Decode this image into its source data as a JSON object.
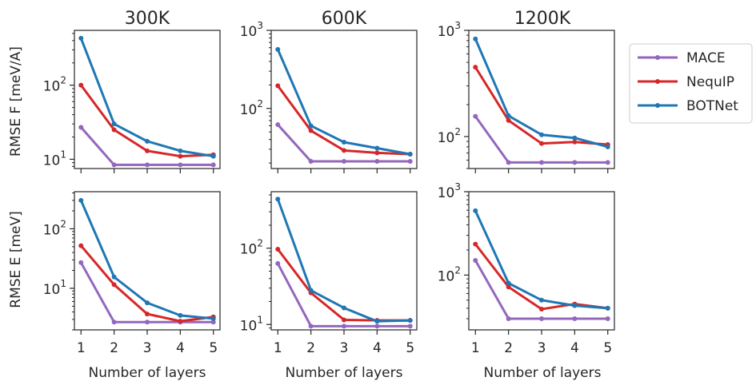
{
  "legend": [
    {
      "name": "MACE",
      "color": "#9467bd"
    },
    {
      "name": "NequIP",
      "color": "#d62728"
    },
    {
      "name": "BOTNet",
      "color": "#1f77b4"
    }
  ],
  "x_ticks": [
    "1",
    "2",
    "3",
    "4",
    "5"
  ],
  "labels": {
    "col_titles": [
      "300K",
      "600K",
      "1200K"
    ],
    "row_ylabels": [
      "RMSE F [meV/A]",
      "RMSE E [meV]"
    ],
    "xlabel": "Number of layers"
  },
  "chart_data": [
    {
      "type": "line",
      "title": "300K",
      "xlabel": "",
      "ylabel": "RMSE F [meV/A]",
      "yscale": "log",
      "ylim": [
        7.5,
        550
      ],
      "yticks": [
        {
          "value": 10,
          "base": "10",
          "exp": "1"
        },
        {
          "value": 100,
          "base": "10",
          "exp": "2"
        }
      ],
      "x": [
        1,
        2,
        3,
        4,
        5
      ],
      "series": [
        {
          "name": "MACE",
          "values": [
            27,
            8.4,
            8.4,
            8.4,
            8.4
          ]
        },
        {
          "name": "NequIP",
          "values": [
            100,
            25,
            13,
            11,
            11.5
          ]
        },
        {
          "name": "BOTNet",
          "values": [
            430,
            30,
            17.5,
            13,
            11
          ]
        }
      ]
    },
    {
      "type": "line",
      "title": "600K",
      "xlabel": "",
      "ylabel": "",
      "yscale": "log",
      "ylim": [
        17,
        1000
      ],
      "yticks": [
        {
          "value": 100,
          "base": "10",
          "exp": "2"
        },
        {
          "value": 1000,
          "base": "10",
          "exp": "3"
        }
      ],
      "x": [
        1,
        2,
        3,
        4,
        5
      ],
      "series": [
        {
          "name": "MACE",
          "values": [
            62,
            21,
            21,
            21,
            21
          ]
        },
        {
          "name": "NequIP",
          "values": [
            195,
            52,
            29,
            27,
            26
          ]
        },
        {
          "name": "BOTNet",
          "values": [
            570,
            60,
            37,
            31,
            26
          ]
        }
      ]
    },
    {
      "type": "line",
      "title": "1200K",
      "xlabel": "",
      "ylabel": "",
      "yscale": "log",
      "ylim": [
        50,
        1000
      ],
      "yticks": [
        {
          "value": 100,
          "base": "10",
          "exp": "2"
        },
        {
          "value": 1000,
          "base": "10",
          "exp": "3"
        }
      ],
      "x": [
        1,
        2,
        3,
        4,
        5
      ],
      "series": [
        {
          "name": "MACE",
          "values": [
            155,
            57,
            57,
            57,
            57
          ]
        },
        {
          "name": "NequIP",
          "values": [
            450,
            142,
            86,
            89,
            84
          ]
        },
        {
          "name": "BOTNet",
          "values": [
            830,
            157,
            104,
            97,
            80
          ]
        }
      ]
    },
    {
      "type": "line",
      "title": "",
      "xlabel": "Number of layers",
      "ylabel": "RMSE E [meV]",
      "yscale": "log",
      "ylim": [
        2,
        420
      ],
      "yticks": [
        {
          "value": 10,
          "base": "10",
          "exp": "1"
        },
        {
          "value": 100,
          "base": "10",
          "exp": "2"
        }
      ],
      "x": [
        1,
        2,
        3,
        4,
        5
      ],
      "series": [
        {
          "name": "MACE",
          "values": [
            27,
            2.7,
            2.7,
            2.7,
            2.7
          ]
        },
        {
          "name": "NequIP",
          "values": [
            52,
            11.5,
            3.7,
            2.8,
            3.3
          ]
        },
        {
          "name": "BOTNet",
          "values": [
            300,
            15.5,
            5.7,
            3.5,
            3.1
          ]
        }
      ]
    },
    {
      "type": "line",
      "title": "",
      "xlabel": "Number of layers",
      "ylabel": "",
      "yscale": "log",
      "ylim": [
        8.5,
        550
      ],
      "yticks": [
        {
          "value": 10,
          "base": "10",
          "exp": "1"
        },
        {
          "value": 100,
          "base": "10",
          "exp": "2"
        }
      ],
      "x": [
        1,
        2,
        3,
        4,
        5
      ],
      "series": [
        {
          "name": "MACE",
          "values": [
            63,
            9.5,
            9.5,
            9.5,
            9.5
          ]
        },
        {
          "name": "NequIP",
          "values": [
            97,
            26,
            11.5,
            11.3,
            11.3
          ]
        },
        {
          "name": "BOTNet",
          "values": [
            440,
            28,
            16.5,
            11,
            11.3
          ]
        }
      ]
    },
    {
      "type": "line",
      "title": "",
      "xlabel": "Number of layers",
      "ylabel": "",
      "yscale": "log",
      "ylim": [
        22,
        1000
      ],
      "yticks": [
        {
          "value": 100,
          "base": "10",
          "exp": "2"
        },
        {
          "value": 1000,
          "base": "10",
          "exp": "3"
        }
      ],
      "x": [
        1,
        2,
        3,
        4,
        5
      ],
      "series": [
        {
          "name": "MACE",
          "values": [
            150,
            30,
            30,
            30,
            30
          ]
        },
        {
          "name": "NequIP",
          "values": [
            235,
            72,
            39,
            45,
            40
          ]
        },
        {
          "name": "BOTNet",
          "values": [
            590,
            80,
            50,
            43,
            40
          ]
        }
      ]
    }
  ]
}
